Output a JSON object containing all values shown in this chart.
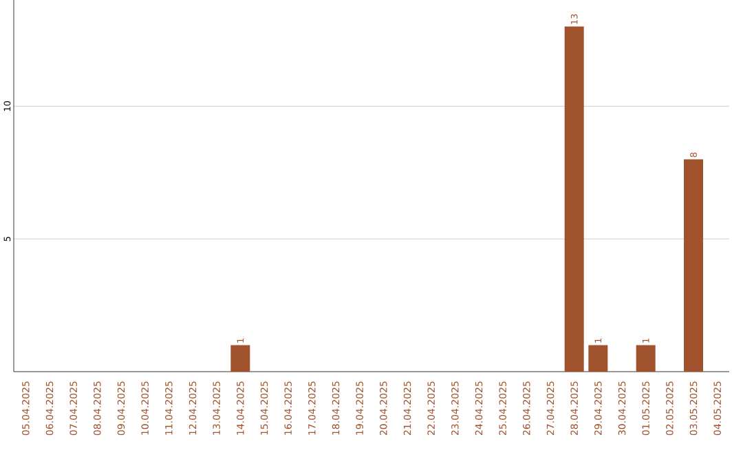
{
  "chart_data": {
    "type": "bar",
    "categories": [
      "05.04.2025",
      "06.04.2025",
      "07.04.2025",
      "08.04.2025",
      "09.04.2025",
      "10.04.2025",
      "11.04.2025",
      "12.04.2025",
      "13.04.2025",
      "14.04.2025",
      "15.04.2025",
      "16.04.2025",
      "17.04.2025",
      "18.04.2025",
      "19.04.2025",
      "20.04.2025",
      "21.04.2025",
      "22.04.2025",
      "23.04.2025",
      "24.04.2025",
      "25.04.2025",
      "26.04.2025",
      "27.04.2025",
      "28.04.2025",
      "29.04.2025",
      "30.04.2025",
      "01.05.2025",
      "02.05.2025",
      "03.05.2025",
      "04.05.2025"
    ],
    "values": [
      0,
      0,
      0,
      0,
      0,
      0,
      0,
      0,
      0,
      1,
      0,
      0,
      0,
      0,
      0,
      0,
      0,
      0,
      0,
      0,
      0,
      0,
      0,
      13,
      1,
      0,
      1,
      0,
      8,
      0
    ],
    "value_labels": [
      null,
      null,
      null,
      null,
      null,
      null,
      null,
      null,
      null,
      "1",
      null,
      null,
      null,
      null,
      null,
      null,
      null,
      null,
      null,
      null,
      null,
      null,
      null,
      "13",
      "1",
      null,
      "1",
      null,
      "8",
      null
    ],
    "color": "#a0522d",
    "ylim": [
      0,
      14
    ],
    "yticks": [
      5,
      10
    ],
    "grid": "y"
  }
}
